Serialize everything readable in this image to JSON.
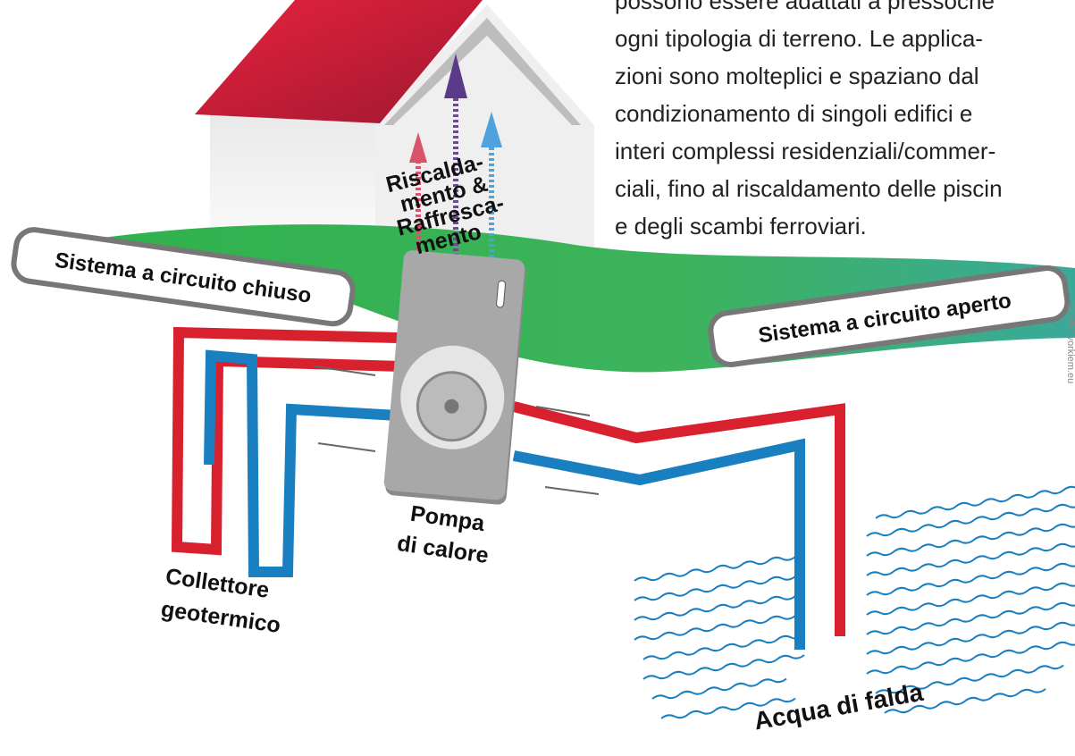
{
  "paragraph": {
    "lines": [
      "possono essere adattati a pressoché",
      "ogni tipologia di terreno. Le applica-",
      "zioni sono molteplici e spaziano dal",
      "condizionamento di singoli edifici e",
      "interi complessi residenziali/commer-",
      "ciali, fino al riscaldamento delle piscin",
      "e degli scambi ferroviari."
    ]
  },
  "labels": {
    "heating_cooling": [
      "Riscalda-",
      "mento &",
      "Raffresca-",
      "mento"
    ],
    "closed_system": "Sistema a circuito chiuso",
    "open_system": "Sistema a circuito aperto",
    "heat_pump": [
      "Pompa",
      "di calore"
    ],
    "collector": [
      "Collettore",
      "geotermico"
    ],
    "groundwater": "Acqua di falda"
  },
  "credit": "Grafik: vorkiem.eu"
}
